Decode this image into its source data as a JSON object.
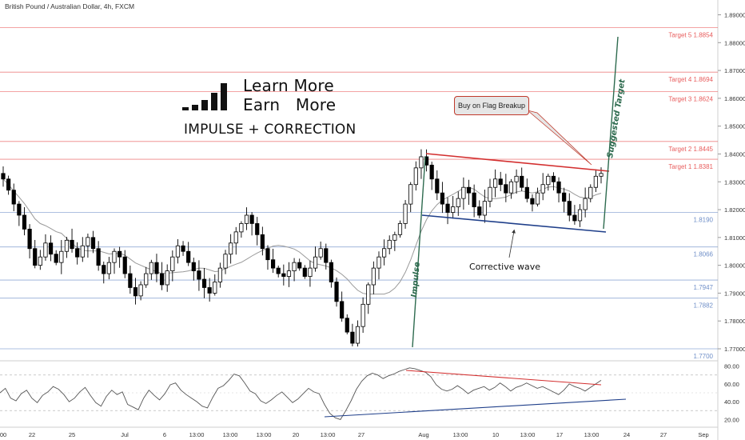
{
  "header": {
    "title": "British Pound / Australian Dollar, 4h, FXCM"
  },
  "branding": {
    "line1": "Learn More",
    "line2": "Earn   More",
    "subtitle": "IMPULSE + CORRECTION"
  },
  "annotations": {
    "callout": "Buy on Flag Breakup",
    "corrective_wave": "Corrective wave",
    "impulse": "Impulse",
    "suggested_target": "Suggested Target"
  },
  "colors": {
    "up_candle": "#000000",
    "down_candle": "#000000",
    "ma_line": "#9a9a9a",
    "red_level": "#e85d5d",
    "blue_level": "#6f8fc8",
    "flag_top": "#d32f2f",
    "flag_bottom": "#1f3f8a",
    "impulse_line": "#2e6b4f",
    "rsi_line": "#555555"
  },
  "chart_data": [
    {
      "type": "candlestick",
      "title": "British Pound / Australian Dollar, 4h, FXCM",
      "ylim": [
        1.764,
        1.898
      ],
      "y_ticks": [
        "1.89000",
        "1.88000",
        "1.87000",
        "1.86000",
        "1.85000",
        "1.84000",
        "1.83000",
        "1.82000",
        "1.81000",
        "1.80000",
        "1.79000",
        "1.78000",
        "1.77000"
      ],
      "x_ticks": [
        "00",
        "22",
        "25",
        "Jul",
        "6",
        "13:00",
        "13:00",
        "13:00",
        "20",
        "13:00",
        "27",
        "Aug",
        "13:00",
        "10",
        "13:00",
        "17",
        "13:00",
        "24",
        "27",
        "Sep"
      ],
      "levels": [
        {
          "label": "Target 5",
          "value": "1.8854",
          "color": "red"
        },
        {
          "label": "Target 4",
          "value": "1.8694",
          "color": "red"
        },
        {
          "label": "Target 3",
          "value": "1.8624",
          "color": "red"
        },
        {
          "label": "Target 2",
          "value": "1.8445",
          "color": "red"
        },
        {
          "label": "Target 1",
          "value": "1.8381",
          "color": "red"
        },
        {
          "label": "",
          "value": "1.8190",
          "color": "blue"
        },
        {
          "label": "",
          "value": "1.8066",
          "color": "blue"
        },
        {
          "label": "",
          "value": "1.7947",
          "color": "blue"
        },
        {
          "label": "",
          "value": "1.7882",
          "color": "blue"
        },
        {
          "label": "",
          "value": "1.7700",
          "color": "blue"
        }
      ],
      "close_path": [
        1.831,
        1.827,
        1.822,
        1.818,
        1.813,
        1.806,
        1.8,
        1.803,
        1.808,
        1.804,
        1.801,
        1.805,
        1.809,
        1.806,
        1.803,
        1.807,
        1.81,
        1.806,
        1.8,
        1.797,
        1.801,
        1.805,
        1.803,
        1.797,
        1.792,
        1.789,
        1.793,
        1.797,
        1.801,
        1.797,
        1.793,
        1.798,
        1.803,
        1.807,
        1.805,
        1.801,
        1.798,
        1.795,
        1.792,
        1.79,
        1.794,
        1.799,
        1.804,
        1.808,
        1.812,
        1.815,
        1.818,
        1.815,
        1.811,
        1.806,
        1.802,
        1.799,
        1.797,
        1.796,
        1.798,
        1.801,
        1.799,
        1.796,
        1.799,
        1.803,
        1.806,
        1.801,
        1.794,
        1.787,
        1.781,
        1.776,
        1.772,
        1.778,
        1.786,
        1.793,
        1.799,
        1.803,
        1.806,
        1.809,
        1.811,
        1.815,
        1.822,
        1.829,
        1.835,
        1.839,
        1.836,
        1.831,
        1.826,
        1.822,
        1.819,
        1.821,
        1.824,
        1.828,
        1.826,
        1.821,
        1.818,
        1.823,
        1.828,
        1.831,
        1.829,
        1.826,
        1.83,
        1.832,
        1.828,
        1.824,
        1.822,
        1.826,
        1.829,
        1.832,
        1.83,
        1.826,
        1.823,
        1.818,
        1.816,
        1.82,
        1.824,
        1.828,
        1.832,
        1.833
      ],
      "rsi": {
        "ylim": [
          15,
          85
        ],
        "y_ticks": [
          "80.00",
          "60.00",
          "40.00",
          "20.00"
        ],
        "values": [
          50,
          55,
          44,
          41,
          49,
          53,
          44,
          39,
          47,
          51,
          57,
          54,
          48,
          40,
          44,
          51,
          56,
          47,
          39,
          35,
          46,
          53,
          48,
          51,
          37,
          34,
          31,
          44,
          53,
          47,
          42,
          49,
          59,
          61,
          53,
          48,
          44,
          40,
          35,
          33,
          45,
          55,
          58,
          64,
          71,
          69,
          61,
          52,
          49,
          41,
          38,
          42,
          47,
          51,
          45,
          39,
          43,
          49,
          55,
          51,
          49,
          37,
          27,
          22,
          20,
          30,
          41,
          54,
          63,
          69,
          72,
          70,
          66,
          69,
          71,
          74,
          76,
          78,
          77,
          75,
          73,
          68,
          59,
          54,
          52,
          54,
          58,
          54,
          49,
          53,
          55,
          57,
          53,
          56,
          61,
          57,
          52,
          56,
          58,
          61,
          58,
          55,
          57,
          54,
          51,
          48,
          53,
          60,
          57,
          55,
          52,
          56,
          60,
          64
        ]
      }
    }
  ]
}
